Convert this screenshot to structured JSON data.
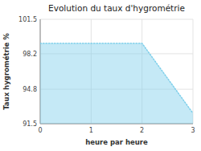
{
  "chart_data": {
    "type": "area",
    "title": "Evolution du taux d'hygrométrie",
    "x_label": "heure par heure",
    "y_label": "Taux hygrométrie %",
    "x": [
      0,
      2,
      3
    ],
    "values": [
      99.2,
      99.2,
      92.5
    ],
    "color": "#7ecfea",
    "line_style": "dotted",
    "xlim": [
      0,
      3
    ],
    "ylim": [
      91.5,
      101.5
    ],
    "xticks": [
      0,
      1,
      2,
      3
    ],
    "yticks": [
      91.5,
      94.8,
      98.2,
      101.5
    ],
    "grid": true
  }
}
